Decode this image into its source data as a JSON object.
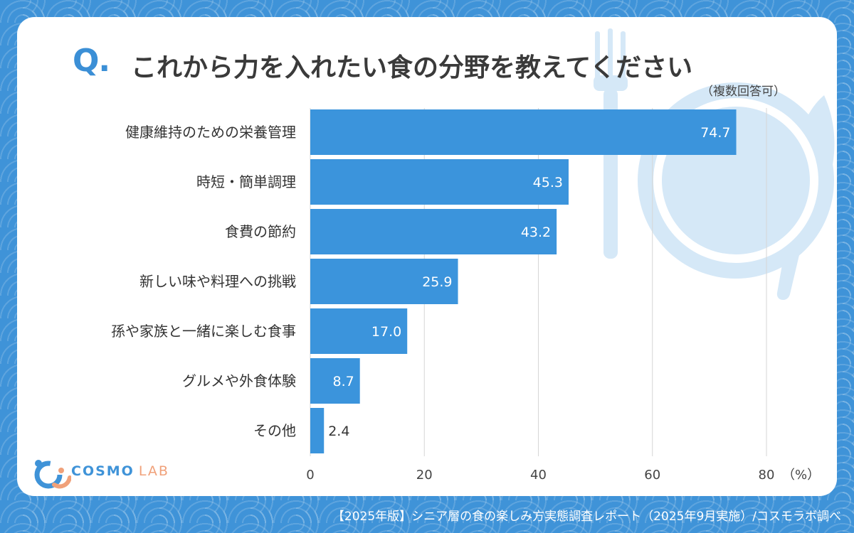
{
  "header": {
    "q_mark": "Q.",
    "title": "これから力を入れたい食の分野を教えてください",
    "subtitle": "（複数回答可）"
  },
  "logo": {
    "name": "COSMO",
    "suffix": "LAB"
  },
  "footer": {
    "credit": "【2025年版】シニア層の食の楽しみ方実態調査レポート（2025年9月実施）/コスモラボ調べ"
  },
  "colors": {
    "bar": "#3b94dc",
    "background": "#3f93d8",
    "accent": "#3b8fd6",
    "grid": "#d6d6d6"
  },
  "chart_data": {
    "type": "bar",
    "orientation": "horizontal",
    "categories": [
      "健康維持のための栄養管理",
      "時短・簡単調理",
      "食費の節約",
      "新しい味や料理への挑戦",
      "孫や家族と一緒に楽しむ食事",
      "グルメや外食体験",
      "その他"
    ],
    "values": [
      74.7,
      45.3,
      43.2,
      25.9,
      17.0,
      8.7,
      2.4
    ],
    "value_labels": [
      "74.7",
      "45.3",
      "43.2",
      "25.9",
      "17.0",
      "8.7",
      "2.4"
    ],
    "xlim": [
      0,
      80
    ],
    "x_ticks": [
      "0",
      "20",
      "40",
      "60",
      "80"
    ],
    "unit": "（%）",
    "grid": "vertical"
  }
}
